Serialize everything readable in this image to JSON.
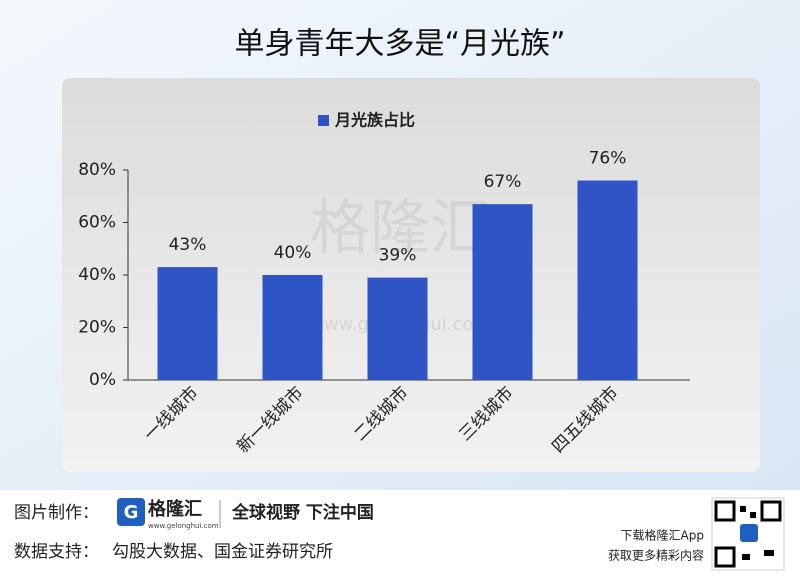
{
  "chart_data": {
    "type": "bar",
    "title": "单身青年大多是“月光族”",
    "categories": [
      "一线城市",
      "新一线城市",
      "二线城市",
      "三线城市",
      "四五线城市"
    ],
    "series": [
      {
        "name": "月光族占比",
        "color": "#2f54c6",
        "values": [
          43,
          40,
          39,
          67,
          76
        ]
      }
    ],
    "value_labels": [
      "43%",
      "40%",
      "39%",
      "67%",
      "76%"
    ],
    "ylim": [
      0,
      80
    ],
    "yticks": [
      {
        "value": 0,
        "label": "0%"
      },
      {
        "value": 20,
        "label": "20%"
      },
      {
        "value": 40,
        "label": "40%"
      },
      {
        "value": 60,
        "label": "60%"
      },
      {
        "value": 80,
        "label": "80%"
      }
    ],
    "legend": "top",
    "watermark": {
      "name": "格隆汇",
      "url": "www.gelonghui.com"
    }
  },
  "footer": {
    "maker_label": "图片制作：",
    "logo": "格隆汇",
    "logo_url": "www.gelonghui.com",
    "slogan": "全球视野 下注中国",
    "source_label": "数据支持：",
    "source": "勾股大数据、国金证券研究所",
    "app_line1": "下载格隆汇App",
    "app_line2": "获取更多精彩内容"
  }
}
